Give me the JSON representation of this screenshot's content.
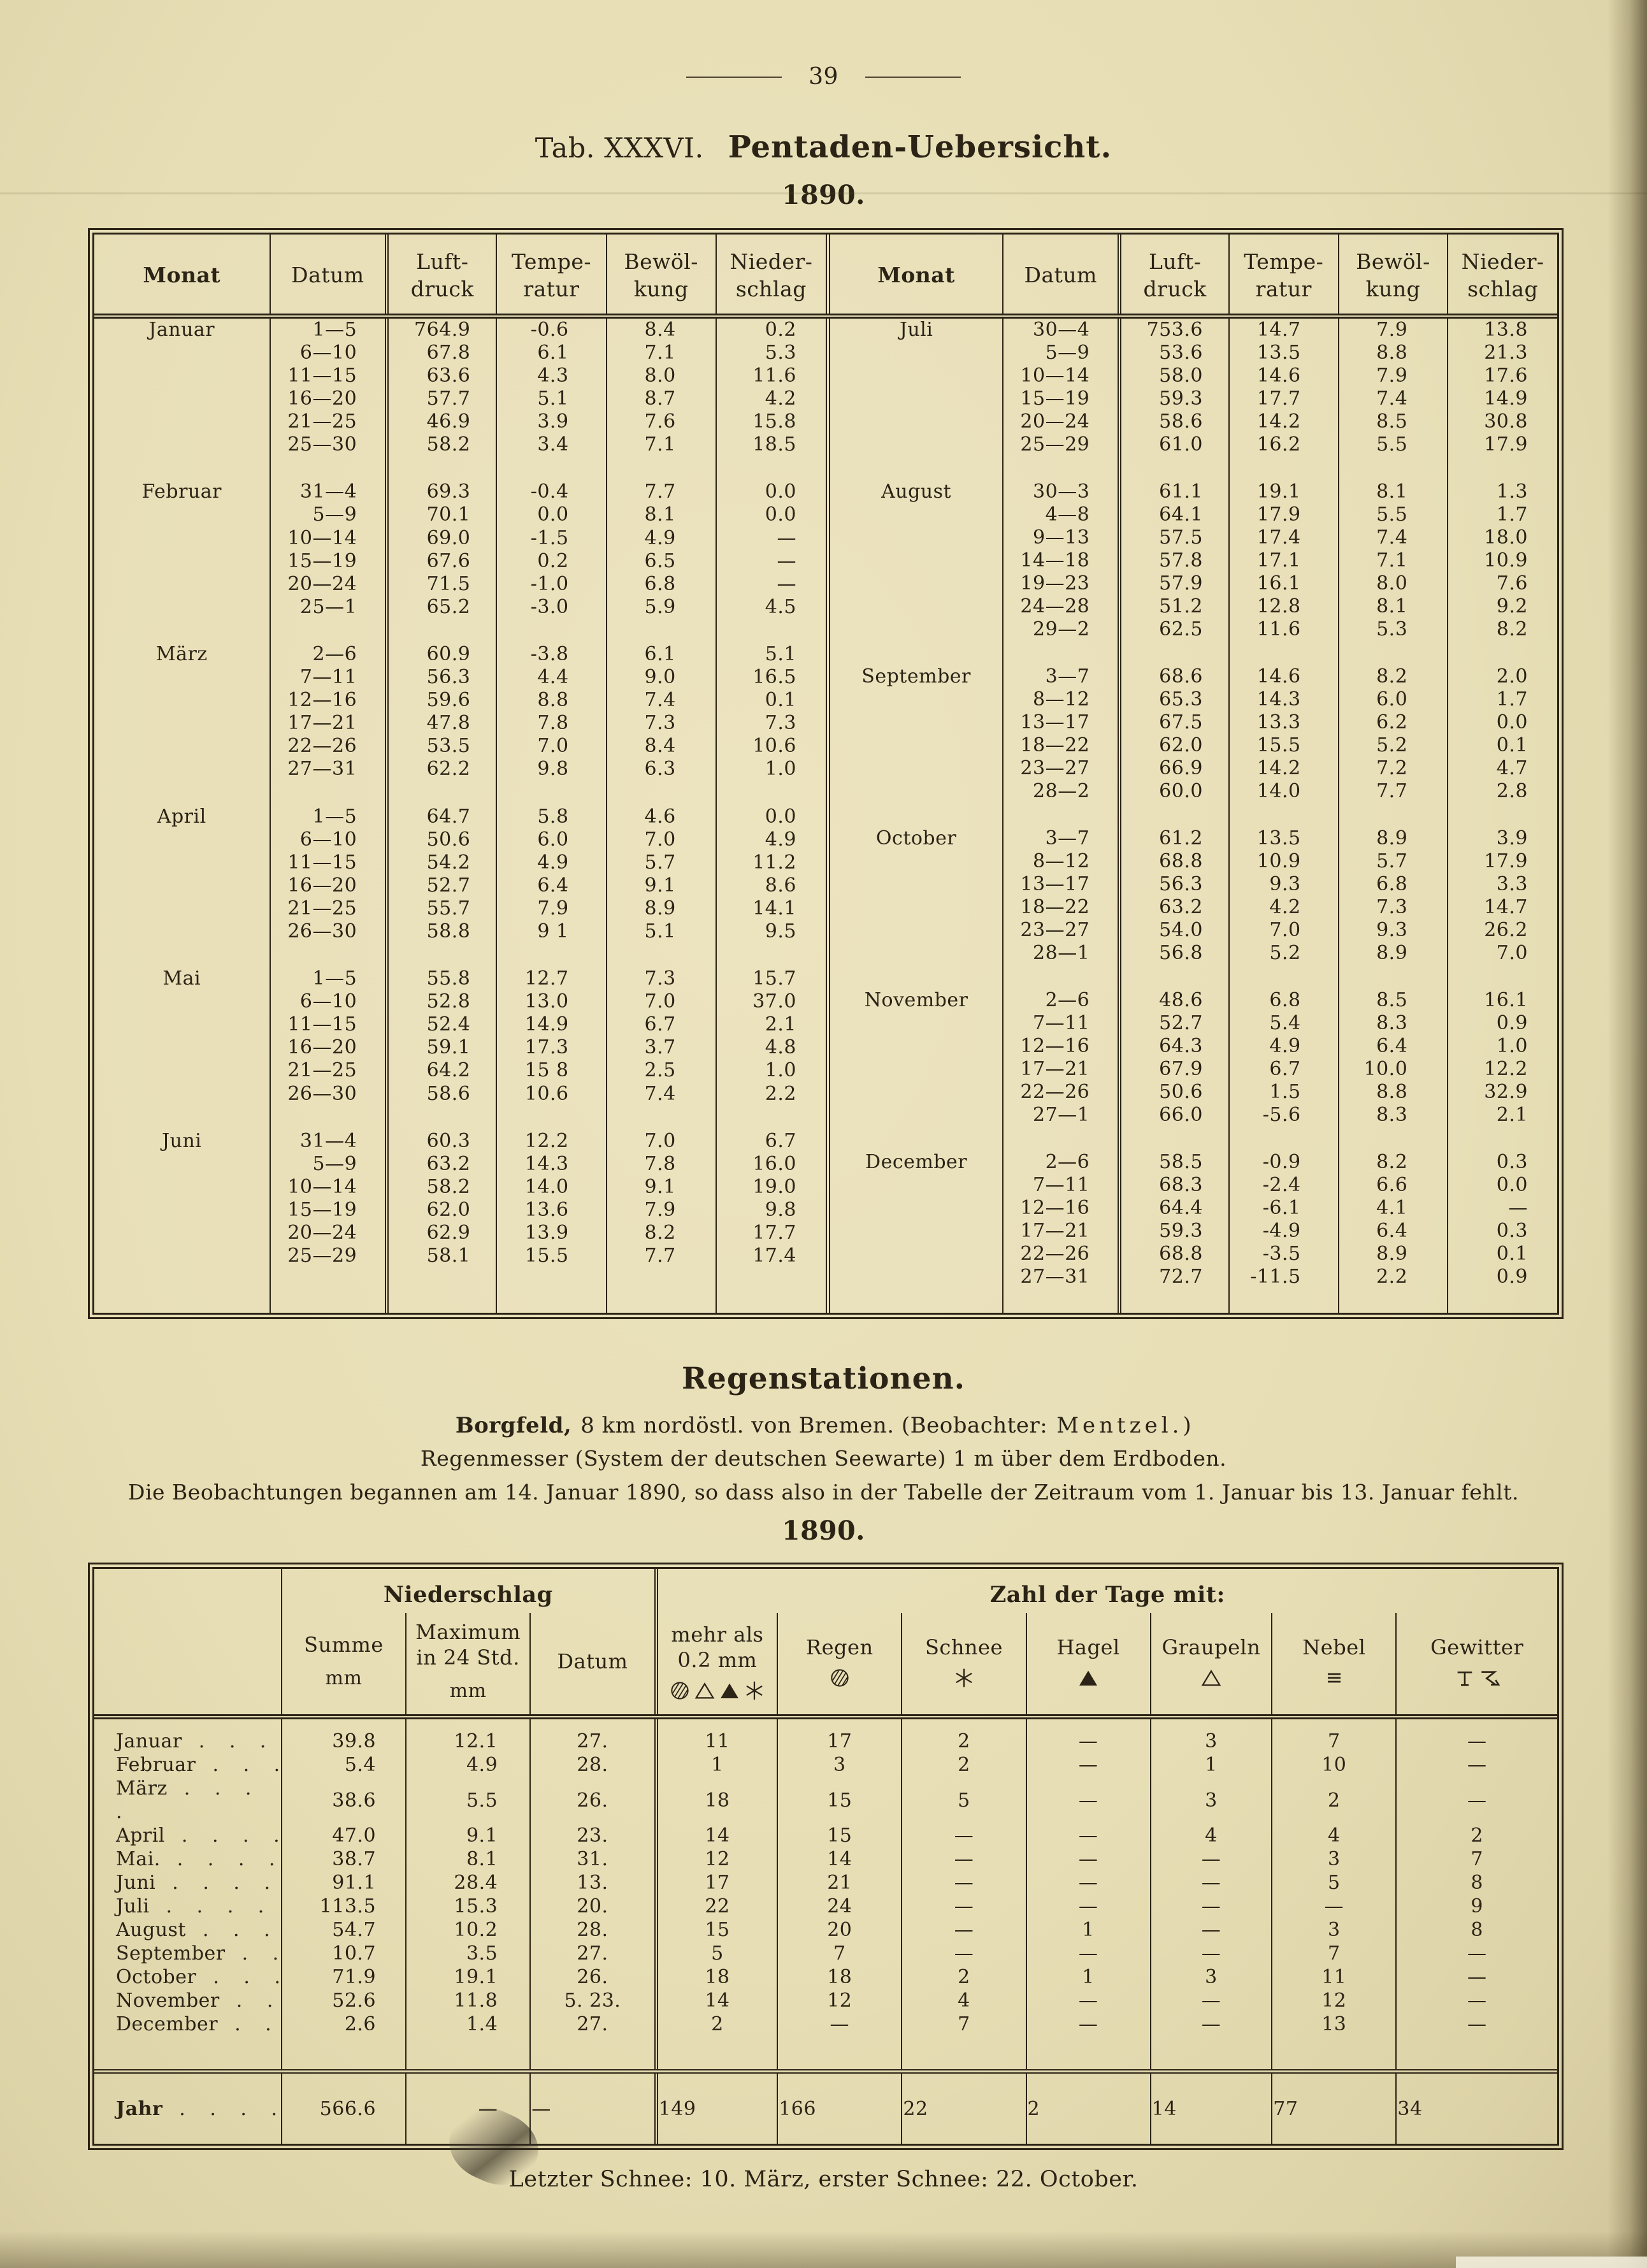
{
  "colors": {
    "paper": "#e7deb5",
    "ink": "#2b2315"
  },
  "page": {
    "number": "39",
    "title_prefix": "Tab. XXXVI.",
    "title": "Pentaden-Uebersicht.",
    "year": "1890."
  },
  "pentad_table": {
    "col_widths": [
      "24%",
      "16%",
      "15%",
      "15%",
      "15%",
      "15%"
    ],
    "column_keys": [
      "monat",
      "datum",
      "luftdruck",
      "temperatur",
      "bewoelkung",
      "niederschlag"
    ],
    "columns": [
      [
        "Monat"
      ],
      [
        "Datum"
      ],
      [
        "Luft-",
        "druck"
      ],
      [
        "Tempe-",
        "ratur"
      ],
      [
        "Bewöl-",
        "kung"
      ],
      [
        "Nieder-",
        "schlag"
      ]
    ],
    "halves": [
      {
        "months": [
          {
            "name": "Januar",
            "rows": [
              [
                "1—5",
                "764.9",
                "-0.6",
                "8.4",
                "0.2"
              ],
              [
                "6—10",
                "67.8",
                "6.1",
                "7.1",
                "5.3"
              ],
              [
                "11—15",
                "63.6",
                "4.3",
                "8.0",
                "11.6"
              ],
              [
                "16—20",
                "57.7",
                "5.1",
                "8.7",
                "4.2"
              ],
              [
                "21—25",
                "46.9",
                "3.9",
                "7.6",
                "15.8"
              ],
              [
                "25—30",
                "58.2",
                "3.4",
                "7.1",
                "18.5"
              ]
            ]
          },
          {
            "name": "Februar",
            "rows": [
              [
                "31—4",
                "69.3",
                "-0.4",
                "7.7",
                "0.0"
              ],
              [
                "5—9",
                "70.1",
                "0.0",
                "8.1",
                "0.0"
              ],
              [
                "10—14",
                "69.0",
                "-1.5",
                "4.9",
                "—"
              ],
              [
                "15—19",
                "67.6",
                "0.2",
                "6.5",
                "—"
              ],
              [
                "20—24",
                "71.5",
                "-1.0",
                "6.8",
                "—"
              ],
              [
                "25—1",
                "65.2",
                "-3.0",
                "5.9",
                "4.5"
              ]
            ]
          },
          {
            "name": "März",
            "rows": [
              [
                "2—6",
                "60.9",
                "-3.8",
                "6.1",
                "5.1"
              ],
              [
                "7—11",
                "56.3",
                "4.4",
                "9.0",
                "16.5"
              ],
              [
                "12—16",
                "59.6",
                "8.8",
                "7.4",
                "0.1"
              ],
              [
                "17—21",
                "47.8",
                "7.8",
                "7.3",
                "7.3"
              ],
              [
                "22—26",
                "53.5",
                "7.0",
                "8.4",
                "10.6"
              ],
              [
                "27—31",
                "62.2",
                "9.8",
                "6.3",
                "1.0"
              ]
            ]
          },
          {
            "name": "April",
            "rows": [
              [
                "1—5",
                "64.7",
                "5.8",
                "4.6",
                "0.0"
              ],
              [
                "6—10",
                "50.6",
                "6.0",
                "7.0",
                "4.9"
              ],
              [
                "11—15",
                "54.2",
                "4.9",
                "5.7",
                "11.2"
              ],
              [
                "16—20",
                "52.7",
                "6.4",
                "9.1",
                "8.6"
              ],
              [
                "21—25",
                "55.7",
                "7.9",
                "8.9",
                "14.1"
              ],
              [
                "26—30",
                "58.8",
                "9 1",
                "5.1",
                "9.5"
              ]
            ]
          },
          {
            "name": "Mai",
            "rows": [
              [
                "1—5",
                "55.8",
                "12.7",
                "7.3",
                "15.7"
              ],
              [
                "6—10",
                "52.8",
                "13.0",
                "7.0",
                "37.0"
              ],
              [
                "11—15",
                "52.4",
                "14.9",
                "6.7",
                "2.1"
              ],
              [
                "16—20",
                "59.1",
                "17.3",
                "3.7",
                "4.8"
              ],
              [
                "21—25",
                "64.2",
                "15 8",
                "2.5",
                "1.0"
              ],
              [
                "26—30",
                "58.6",
                "10.6",
                "7.4",
                "2.2"
              ]
            ]
          },
          {
            "name": "Juni",
            "rows": [
              [
                "31—4",
                "60.3",
                "12.2",
                "7.0",
                "6.7"
              ],
              [
                "5—9",
                "63.2",
                "14.3",
                "7.8",
                "16.0"
              ],
              [
                "10—14",
                "58.2",
                "14.0",
                "9.1",
                "19.0"
              ],
              [
                "15—19",
                "62.0",
                "13.6",
                "7.9",
                "9.8"
              ],
              [
                "20—24",
                "62.9",
                "13.9",
                "8.2",
                "17.7"
              ],
              [
                "25—29",
                "58.1",
                "15.5",
                "7.7",
                "17.4"
              ]
            ]
          }
        ]
      },
      {
        "months": [
          {
            "name": "Juli",
            "rows": [
              [
                "30—4",
                "753.6",
                "14.7",
                "7.9",
                "13.8"
              ],
              [
                "5—9",
                "53.6",
                "13.5",
                "8.8",
                "21.3"
              ],
              [
                "10—14",
                "58.0",
                "14.6",
                "7.9",
                "17.6"
              ],
              [
                "15—19",
                "59.3",
                "17.7",
                "7.4",
                "14.9"
              ],
              [
                "20—24",
                "58.6",
                "14.2",
                "8.5",
                "30.8"
              ],
              [
                "25—29",
                "61.0",
                "16.2",
                "5.5",
                "17.9"
              ]
            ]
          },
          {
            "name": "August",
            "rows": [
              [
                "30—3",
                "61.1",
                "19.1",
                "8.1",
                "1.3"
              ],
              [
                "4—8",
                "64.1",
                "17.9",
                "5.5",
                "1.7"
              ],
              [
                "9—13",
                "57.5",
                "17.4",
                "7.4",
                "18.0"
              ],
              [
                "14—18",
                "57.8",
                "17.1",
                "7.1",
                "10.9"
              ],
              [
                "19—23",
                "57.9",
                "16.1",
                "8.0",
                "7.6"
              ],
              [
                "24—28",
                "51.2",
                "12.8",
                "8.1",
                "9.2"
              ],
              [
                "29—2",
                "62.5",
                "11.6",
                "5.3",
                "8.2"
              ]
            ]
          },
          {
            "name": "September",
            "rows": [
              [
                "3—7",
                "68.6",
                "14.6",
                "8.2",
                "2.0"
              ],
              [
                "8—12",
                "65.3",
                "14.3",
                "6.0",
                "1.7"
              ],
              [
                "13—17",
                "67.5",
                "13.3",
                "6.2",
                "0.0"
              ],
              [
                "18—22",
                "62.0",
                "15.5",
                "5.2",
                "0.1"
              ],
              [
                "23—27",
                "66.9",
                "14.2",
                "7.2",
                "4.7"
              ],
              [
                "28—2",
                "60.0",
                "14.0",
                "7.7",
                "2.8"
              ]
            ]
          },
          {
            "name": "October",
            "rows": [
              [
                "3—7",
                "61.2",
                "13.5",
                "8.9",
                "3.9"
              ],
              [
                "8—12",
                "68.8",
                "10.9",
                "5.7",
                "17.9"
              ],
              [
                "13—17",
                "56.3",
                "9.3",
                "6.8",
                "3.3"
              ],
              [
                "18—22",
                "63.2",
                "4.2",
                "7.3",
                "14.7"
              ],
              [
                "23—27",
                "54.0",
                "7.0",
                "9.3",
                "26.2"
              ],
              [
                "28—1",
                "56.8",
                "5.2",
                "8.9",
                "7.0"
              ]
            ]
          },
          {
            "name": "November",
            "rows": [
              [
                "2—6",
                "48.6",
                "6.8",
                "8.5",
                "16.1"
              ],
              [
                "7—11",
                "52.7",
                "5.4",
                "8.3",
                "0.9"
              ],
              [
                "12—16",
                "64.3",
                "4.9",
                "6.4",
                "1.0"
              ],
              [
                "17—21",
                "67.9",
                "6.7",
                "10.0",
                "12.2"
              ],
              [
                "22—26",
                "50.6",
                "1.5",
                "8.8",
                "32.9"
              ],
              [
                "27—1",
                "66.0",
                "-5.6",
                "8.3",
                "2.1"
              ]
            ]
          },
          {
            "name": "December",
            "rows": [
              [
                "2—6",
                "58.5",
                "-0.9",
                "8.2",
                "0.3"
              ],
              [
                "7—11",
                "68.3",
                "-2.4",
                "6.6",
                "0.0"
              ],
              [
                "12—16",
                "64.4",
                "-6.1",
                "4.1",
                "—"
              ],
              [
                "17—21",
                "59.3",
                "-4.9",
                "6.4",
                "0.3"
              ],
              [
                "22—26",
                "68.8",
                "-3.5",
                "8.9",
                "0.1"
              ],
              [
                "27—31",
                "72.7",
                "-11.5",
                "2.2",
                "0.9"
              ]
            ]
          }
        ]
      }
    ]
  },
  "regen": {
    "heading": "Regenstationen.",
    "station": "Borgfeld,",
    "station_rest": "8 km nordöstl. von Bremen.  (Beobachter:",
    "observer": "Mentzel.",
    "observer_end": ")",
    "line2": "Regenmesser (System der deutschen Seewarte) 1 m über dem Erdboden.",
    "line3": "Die Beobachtungen begannen am 14. Januar 1890, so dass also in der Tabelle der Zeitraum vom 1. Januar bis 13. Januar fehlt.",
    "year": "1890."
  },
  "rain_table": {
    "col_widths": [
      "12.8%",
      "8.5%",
      "8.5%",
      "8.6%",
      "8.3%",
      "8.5%",
      "8.5%",
      "8.5%",
      "8.3%",
      "8.5%",
      "11%"
    ],
    "group1": "Niederschlag",
    "group2": "Zahl der Tage mit:",
    "columns": [
      {
        "key": "summe",
        "lines": [
          "Summe"
        ],
        "unit": "mm"
      },
      {
        "key": "maximum",
        "lines": [
          "Maximum",
          "in 24 Std."
        ],
        "unit": "mm"
      },
      {
        "key": "datum",
        "lines": [
          "Datum"
        ]
      },
      {
        "key": "mehr_als",
        "lines": [
          "mehr als",
          "0.2 mm"
        ],
        "symbols": [
          "rain-circle",
          "open-triangle",
          "filled-triangle",
          "snow-star"
        ]
      },
      {
        "key": "regen",
        "lines": [
          "Regen"
        ],
        "symbols": [
          "rain-circle"
        ]
      },
      {
        "key": "schnee",
        "lines": [
          "Schnee"
        ],
        "symbols": [
          "snow-star"
        ]
      },
      {
        "key": "hagel",
        "lines": [
          "Hagel"
        ],
        "symbols": [
          "filled-triangle"
        ]
      },
      {
        "key": "graupeln",
        "lines": [
          "Graupeln"
        ],
        "symbols": [
          "open-triangle"
        ]
      },
      {
        "key": "nebel",
        "lines": [
          "Nebel"
        ],
        "symbols": [
          "fog-lines"
        ]
      },
      {
        "key": "gewitter",
        "lines": [
          "Gewitter"
        ],
        "symbols": [
          "thunder-T",
          "lightning-flag"
        ]
      }
    ],
    "rows": [
      {
        "label": "Januar",
        "dots": ". . .",
        "values": [
          "39.8",
          "12.1",
          "27.",
          "11",
          "17",
          "2",
          "—",
          "3",
          "7",
          "—"
        ]
      },
      {
        "label": "Februar",
        "dots": ". . .",
        "values": [
          "5.4",
          "4.9",
          "28.",
          "1",
          "3",
          "2",
          "—",
          "1",
          "10",
          "—"
        ]
      },
      {
        "label": "März",
        "dots": ". . . .",
        "values": [
          "38.6",
          "5.5",
          "26.",
          "18",
          "15",
          "5",
          "—",
          "3",
          "2",
          "—"
        ]
      },
      {
        "label": "April",
        "dots": ". . . .",
        "values": [
          "47.0",
          "9.1",
          "23.",
          "14",
          "15",
          "—",
          "—",
          "4",
          "4",
          "2"
        ]
      },
      {
        "label": "Mai.",
        "dots": ". . . .",
        "values": [
          "38.7",
          "8.1",
          "31.",
          "12",
          "14",
          "—",
          "—",
          "—",
          "3",
          "7"
        ]
      },
      {
        "label": "Juni",
        "dots": ". . . .",
        "values": [
          "91.1",
          "28.4",
          "13.",
          "17",
          "21",
          "—",
          "—",
          "—",
          "5",
          "8"
        ]
      },
      {
        "label": "Juli",
        "dots": ". . . .",
        "values": [
          "113.5",
          "15.3",
          "20.",
          "22",
          "24",
          "—",
          "—",
          "—",
          "—",
          "9"
        ]
      },
      {
        "label": "August",
        "dots": ". . .",
        "values": [
          "54.7",
          "10.2",
          "28.",
          "15",
          "20",
          "—",
          "1",
          "—",
          "3",
          "8"
        ]
      },
      {
        "label": "September",
        "dots": ". .",
        "values": [
          "10.7",
          "3.5",
          "27.",
          "5",
          "7",
          "—",
          "—",
          "—",
          "7",
          "—"
        ]
      },
      {
        "label": "October",
        "dots": ". . .",
        "values": [
          "71.9",
          "19.1",
          "26.",
          "18",
          "18",
          "2",
          "1",
          "3",
          "11",
          "—"
        ]
      },
      {
        "label": "November",
        "dots": ". .",
        "values": [
          "52.6",
          "11.8",
          "5. 23.",
          "14",
          "12",
          "4",
          "—",
          "—",
          "12",
          "—"
        ]
      },
      {
        "label": "December",
        "dots": ". .",
        "values": [
          "2.6",
          "1.4",
          "27.",
          "2",
          "—",
          "7",
          "—",
          "—",
          "13",
          "—"
        ]
      }
    ],
    "total_row": {
      "label": "Jahr",
      "dots": ". . . .",
      "values": [
        "566.6",
        "—",
        "—",
        "149",
        "166",
        "22",
        "2",
        "14",
        "77",
        "34"
      ]
    }
  },
  "footer": {
    "note": "Letzter Schnee: 10. März, erster Schnee: 22. October."
  }
}
